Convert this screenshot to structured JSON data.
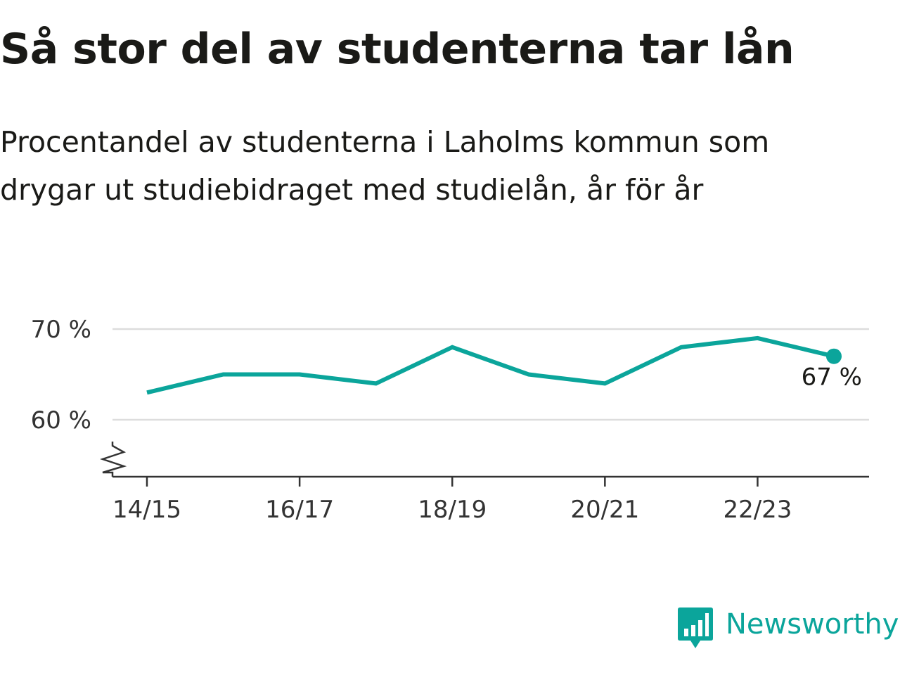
{
  "header": {
    "title": "Så stor del av studenterna tar lån",
    "subtitle": "Procentandel av studenterna i Laholms kommun som drygar ut studiebidraget med studielån, år för år"
  },
  "brand": {
    "name": "Newsworthy",
    "icon": "newsworthy-logo-icon",
    "color": "#0ba59b"
  },
  "chart_data": {
    "type": "line",
    "title": "Så stor del av studenterna tar lån",
    "subtitle": "Procentandel av studenterna i Laholms kommun som drygar ut studiebidraget med studielån, år för år",
    "x": [
      "14/15",
      "15/16",
      "16/17",
      "17/18",
      "18/19",
      "19/20",
      "20/21",
      "21/22",
      "22/23",
      "23/24"
    ],
    "x_tick_labels": [
      "14/15",
      "16/17",
      "18/19",
      "20/21",
      "22/23"
    ],
    "series": [
      {
        "values": [
          63,
          65,
          65,
          64,
          68,
          65,
          64,
          68,
          69,
          67
        ],
        "color": "#0ba59b"
      }
    ],
    "y_ticks": [
      {
        "value": 60,
        "label": "60 %"
      },
      {
        "value": 70,
        "label": "70 %"
      }
    ],
    "ylim": [
      54,
      70
    ],
    "y_axis_break": true,
    "grid": true,
    "end_label": "67 %",
    "line_color": "#0ba59b",
    "grid_color": "#dddddd",
    "axis_color": "#333333"
  }
}
